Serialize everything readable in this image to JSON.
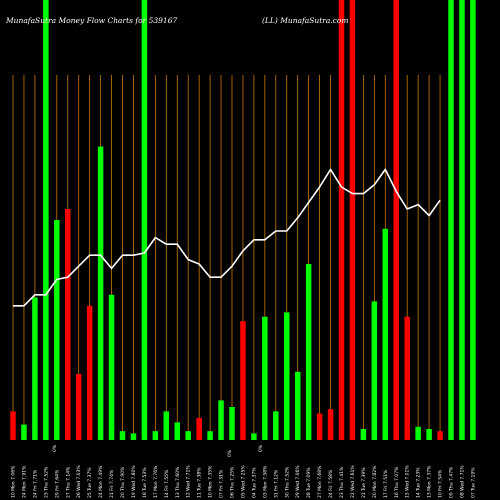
{
  "header": {
    "title_left": "MunafaSutra  Money Flow  Charts for 539167",
    "title_right": "(LL) MunafaSutra.com"
  },
  "colors": {
    "background": "#000000",
    "up": "#00ff00",
    "down": "#ff0000",
    "line": "#ffffff",
    "grid": "#cc7a00",
    "text": "#ffffff"
  },
  "chart_data": {
    "type": "bar",
    "ylim": [
      0,
      100
    ],
    "grid": "vertical",
    "categories": [
      "10 Mon 7.06%",
      "24 Mon 7.91%",
      "24 Fri 7.71%",
      "23 Thu 7.52%",
      "29 Fri 7.64%",
      "27 Thu 7.14%",
      "26 Wed 7.03%",
      "25 Tue 7.37%",
      "24 Mon 7.49%",
      "21 Fri 7.74%",
      "20 Thu 7.90%",
      "19 Wed 7.80%",
      "18 Tue 7.53%",
      "17 Mon 7.76%",
      "14 Fri 7.55%",
      "13 Thu 7.60%",
      "12 Wed 7.71%",
      "11 Tue 7.38%",
      "10 Mon 7.35%",
      "07 Fri 7.31%",
      "06 Thu 7.25%",
      "05 Wed 7.25%",
      "04 Tue 7.37%",
      "03 Mon 7.58%",
      "31 Fri 7.12%",
      "30 Thu 7.52%",
      "29 Wed 7.06%",
      "28 Tue 7.09%",
      "27 Mon 7.68%",
      "24 Fri 7.58%",
      "23 Thu 7.41%",
      "22 Wed 7.61%",
      "21 Tue 7.39%",
      "20 Mon 7.82%",
      "17 Fri 7.51%",
      "16 Thu 7.07%",
      "15 Wed 7.01%",
      "14 Tue 7.23%",
      "13 Mon 7.37%",
      "10 Fri 7.54%",
      "09 Thu 7.47%",
      "08 Wed 7.71%",
      "07 Tue 7.19%"
    ],
    "bars": {
      "values": [
        6.5,
        3.5,
        32.4,
        100,
        50,
        52.5,
        15,
        30.5,
        66.7,
        33,
        2,
        1.5,
        100,
        2,
        6.5,
        4,
        2,
        5,
        2,
        9,
        7.5,
        27,
        1.5,
        28,
        6.5,
        29,
        15.5,
        40,
        6,
        7,
        100,
        100,
        2.5,
        31.5,
        48,
        100,
        28,
        3,
        2.5,
        2,
        100,
        100,
        100
      ],
      "direction": [
        "down",
        "up",
        "up",
        "up",
        "up",
        "down",
        "down",
        "down",
        "up",
        "up",
        "up",
        "up",
        "up",
        "up",
        "up",
        "up",
        "up",
        "down",
        "up",
        "up",
        "up",
        "down",
        "up",
        "up",
        "up",
        "up",
        "up",
        "up",
        "down",
        "down",
        "down",
        "down",
        "up",
        "up",
        "up",
        "down",
        "down",
        "up",
        "up",
        "down",
        "up",
        "up",
        "up"
      ]
    },
    "money_flow_line": [
      30.5,
      30.5,
      33,
      33,
      36.5,
      37,
      39.5,
      42,
      42,
      39,
      42,
      42,
      42.5,
      46,
      44.5,
      44.5,
      41,
      40,
      37,
      37,
      39.5,
      43,
      45.5,
      45.5,
      47.5,
      47.5,
      50.5,
      54,
      57.5,
      61.5,
      57.5,
      56,
      56,
      58,
      61.5,
      56.5,
      52.5,
      53.5,
      51,
      54.5
    ],
    "notes": [
      "0%",
      "0%",
      "0%"
    ]
  }
}
